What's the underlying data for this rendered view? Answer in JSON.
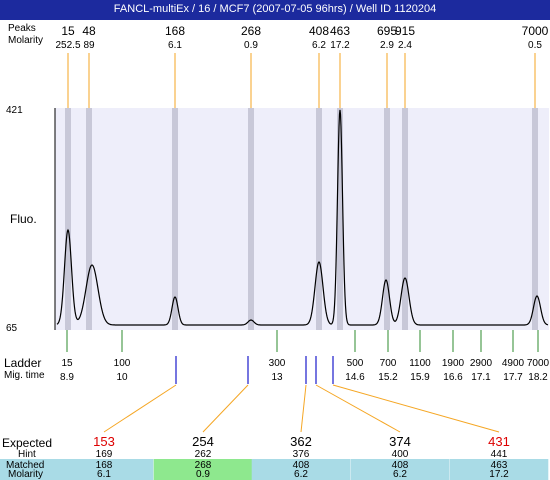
{
  "title": "FANCL-multiEx / 16 / MCF7 (2007-07-05 96hrs) / Well ID 1120204",
  "header_left": {
    "size_label": "Peaks",
    "molarity_label": "Molarity"
  },
  "peaks": [
    {
      "size": "15",
      "molarity": "252.5"
    },
    {
      "size": "48",
      "molarity": "89"
    },
    {
      "size": "168",
      "molarity": "6.1"
    },
    {
      "size": "268",
      "molarity": "0.9"
    },
    {
      "size": "408",
      "molarity": "6.2"
    },
    {
      "size": "463",
      "molarity": "17.2"
    },
    {
      "size": "695",
      "molarity": "2.9"
    },
    {
      "size": "915",
      "molarity": "2.4"
    },
    {
      "size": "7000",
      "molarity": "0.5"
    }
  ],
  "plot": {
    "ymax_label": "421",
    "ymin_label": "65",
    "axis_label": "Fluo."
  },
  "ladder": {
    "label": "Ladder",
    "mig_label": "Mig. time",
    "sizes": [
      "15",
      "100",
      "300",
      "500",
      "700",
      "1100",
      "1900",
      "2900",
      "4900",
      "7000"
    ],
    "times": [
      "8.9",
      "10",
      "13",
      "14.6",
      "15.2",
      "15.9",
      "16.6",
      "17.1",
      "17.7",
      "18.2"
    ]
  },
  "table": {
    "expected_label": "Expected",
    "hint_label": "Hint",
    "matched_label": "Matched",
    "molarity_label": "Molarity",
    "columns": [
      {
        "expected": "153",
        "hint": "169",
        "matched": "168",
        "molarity": "6.1",
        "expected_color": "#dd0000",
        "bg": "#a9dbe6"
      },
      {
        "expected": "254",
        "hint": "262",
        "matched": "268",
        "molarity": "0.9",
        "expected_color": "#000000",
        "bg": "#8ee88e"
      },
      {
        "expected": "362",
        "hint": "376",
        "matched": "408",
        "molarity": "6.2",
        "expected_color": "#000000",
        "bg": "#a9dbe6"
      },
      {
        "expected": "374",
        "hint": "400",
        "matched": "408",
        "molarity": "6.2",
        "expected_color": "#000000",
        "bg": "#a9dbe6"
      },
      {
        "expected": "431",
        "hint": "441",
        "matched": "463",
        "molarity": "17.2",
        "expected_color": "#dd0000",
        "bg": "#a9dbe6"
      }
    ]
  },
  "colors": {
    "title_bg": "#1c2a9e",
    "plot_bg": "#eeeefa",
    "band": "#c8c8d8",
    "trace": "#000000",
    "connector": "#f5a623",
    "ladder_tick": "#2e8b2e",
    "marker_tick": "#1a1acc"
  }
}
